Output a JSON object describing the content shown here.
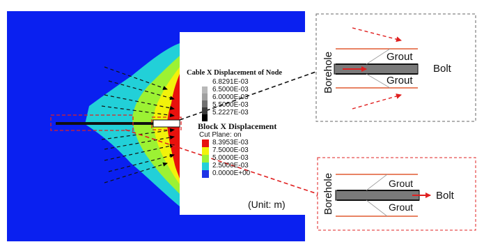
{
  "legend": {
    "cable_title": "Cable X Displacement of Node",
    "cable_values": [
      "6.8291E-03",
      "6.5000E-03",
      "6.0000E-03",
      "5.5000E-03",
      "5.2227E-03"
    ],
    "block_title": "Block  X Displacement",
    "block_subtitle": "Cut Plane: on",
    "block_values": [
      "8.3953E-03",
      "7.5000E-03",
      "5.0000E-03",
      "2.5000E-03",
      "0.0000E+00"
    ],
    "block_colors": [
      "#e8110d",
      "#f2f20a",
      "#9cf233",
      "#22d0d8",
      "#1e33e6"
    ],
    "cable_colors": [
      "#b8b8b8",
      "#a0a0a0",
      "#707070",
      "#3a3a3a",
      "#000000"
    ]
  },
  "unit_label": "(Unit: m)",
  "detail_top": {
    "borehole_label": "Borehole",
    "grout_upper": "Grout",
    "grout_lower": "Grout",
    "bolt_label": "Bolt"
  },
  "detail_bottom": {
    "borehole_label": "Borehole",
    "grout_upper": "Grout",
    "grout_lower": "Grout",
    "bolt_label": "Bolt"
  },
  "colors": {
    "field_blue": "#0a20f0",
    "cyan": "#22d0d8",
    "green": "#9cf233",
    "yellow": "#f2f20a",
    "red": "#e8110d",
    "borehole_line": "#e05a30",
    "arrow_red": "#e02020"
  }
}
